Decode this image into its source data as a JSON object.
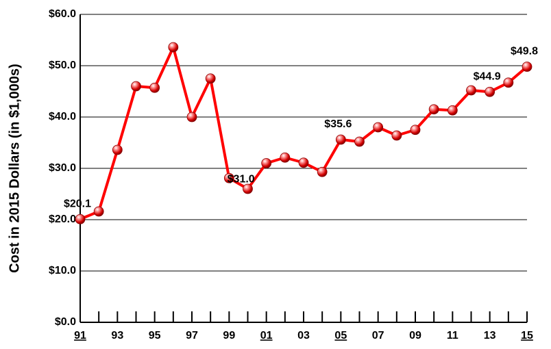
{
  "chart_data": {
    "type": "line",
    "y_axis_label": "Cost in 2015 Dollars (in $1,000s)",
    "categories": [
      "91",
      null,
      "93",
      null,
      "95",
      null,
      "97",
      null,
      "99",
      null,
      "01",
      null,
      "03",
      null,
      "05",
      null,
      "07",
      null,
      "09",
      null,
      "11",
      null,
      "13",
      null,
      "15"
    ],
    "underlined_categories": [
      0,
      10,
      14,
      24
    ],
    "series": [
      {
        "name": "Cost",
        "color": "#ff0000",
        "values": [
          20.1,
          21.6,
          33.6,
          46.0,
          45.7,
          53.6,
          40.0,
          47.5,
          28.1,
          26.0,
          31.0,
          32.1,
          31.1,
          29.3,
          35.6,
          35.2,
          38.0,
          36.4,
          37.5,
          41.5,
          41.3,
          45.2,
          44.9,
          46.7,
          49.8
        ],
        "value_labels": [
          "$20.1",
          null,
          null,
          null,
          null,
          null,
          null,
          null,
          null,
          null,
          "$31.0",
          null,
          null,
          null,
          "$35.6",
          null,
          null,
          null,
          null,
          null,
          null,
          null,
          "$44.9",
          null,
          "$49.8"
        ]
      }
    ],
    "ylim": [
      0,
      60
    ],
    "yticks": [
      {
        "value": 0,
        "label": "$0.0"
      },
      {
        "value": 10,
        "label": "$10.0"
      },
      {
        "value": 20,
        "label": "$20.0"
      },
      {
        "value": 30,
        "label": "$30.0"
      },
      {
        "value": 40,
        "label": "$40.0"
      },
      {
        "value": 50,
        "label": "$50.0"
      },
      {
        "value": 60,
        "label": "$60.0"
      }
    ],
    "grid": true
  }
}
